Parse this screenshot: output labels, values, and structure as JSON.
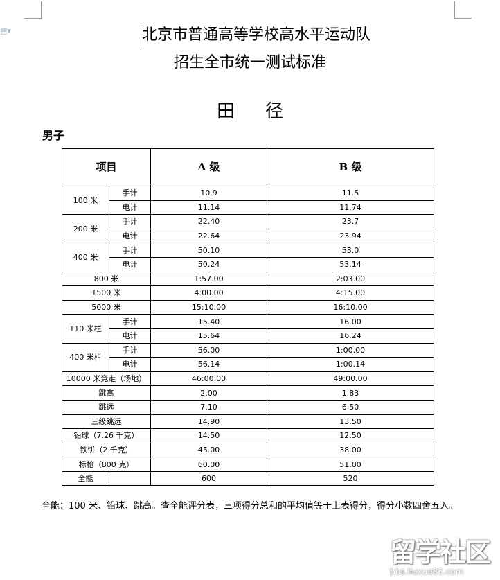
{
  "title_line1": "北京市普通高等学校高水平运动队",
  "title_line2": "招生全市统一测试标准",
  "section": {
    "char1": "田",
    "char2": "径"
  },
  "group": "男子",
  "table": {
    "headers": [
      "项目",
      "A 级",
      "B 级"
    ],
    "rows": [
      {
        "event": "100 米",
        "sub": "手计",
        "a": "10.9",
        "b": "11.5"
      },
      {
        "event": "100 米",
        "sub": "电计",
        "a": "11.14",
        "b": "11.74"
      },
      {
        "event": "200 米",
        "sub": "手计",
        "a": "22.40",
        "b": "23.7"
      },
      {
        "event": "200 米",
        "sub": "电计",
        "a": "22.64",
        "b": "23.94"
      },
      {
        "event": "400 米",
        "sub": "手计",
        "a": "50.10",
        "b": "53.0"
      },
      {
        "event": "400 米",
        "sub": "电计",
        "a": "50.24",
        "b": "53.14"
      },
      {
        "event": "800 米",
        "a": "1:57.00",
        "b": "2:03.00"
      },
      {
        "event": "1500 米",
        "a": "4:00.00",
        "b": "4:15.00"
      },
      {
        "event": "5000 米",
        "a": "15:10.00",
        "b": "16:10.00"
      },
      {
        "event": "110 米栏",
        "sub": "手计",
        "a": "15.40",
        "b": "16.00"
      },
      {
        "event": "110 米栏",
        "sub": "电计",
        "a": "15.64",
        "b": "16.24"
      },
      {
        "event": "400 米栏",
        "sub": "手计",
        "a": "56.00",
        "b": "1:00.00"
      },
      {
        "event": "400 米栏",
        "sub": "电计",
        "a": "56.14",
        "b": "1:00.14"
      },
      {
        "event": "10000 米竞走（场地）",
        "a": "46:00.00",
        "b": "49:00.00"
      },
      {
        "event": "跳高",
        "a": "2.00",
        "b": "1.83"
      },
      {
        "event": "跳远",
        "a": "7.10",
        "b": "6.50"
      },
      {
        "event": "三级跳远",
        "a": "14.90",
        "b": "13.50"
      },
      {
        "event": "铅球（7.26 千克）",
        "a": "14.50",
        "b": "12.50"
      },
      {
        "event": "铁饼（2 千克）",
        "a": "45.00",
        "b": "38.00"
      },
      {
        "event": "标枪（800 克）",
        "a": "60.00",
        "b": "51.00"
      },
      {
        "event": "全能",
        "sub": "",
        "a": "600",
        "b": "520"
      }
    ]
  },
  "note": "全能：100 米、铅球、跳高。查全能评分表，三项得分总和的平均值等于上表得分，得分小数四舍五入。",
  "watermark": {
    "text": "留学社区",
    "url": "bbs.liuxue86.com"
  }
}
